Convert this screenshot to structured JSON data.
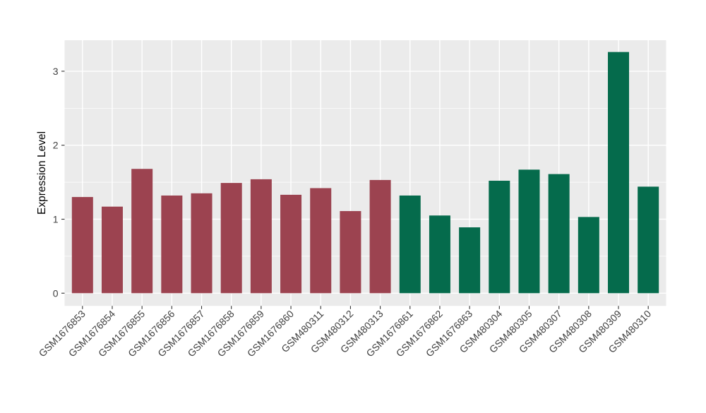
{
  "figure": {
    "background": "#FFFFFF"
  },
  "chart_data": {
    "type": "bar",
    "title": "",
    "xlabel": "",
    "ylabel": "Expression Level",
    "ylim": [
      -0.17,
      3.42
    ],
    "yticks": [
      0,
      1,
      2,
      3
    ],
    "minor_gridlines": [
      0.5,
      1.5,
      2.5
    ],
    "grid": "horizontal major+minor white, vertical major at category centers",
    "legend": "none",
    "panel_background": "#EBEBEB",
    "gridline_color": "#FFFFFF",
    "axis_text_color": "#404040",
    "axis_tick_color": "#333333",
    "categories": [
      "GSM1676853",
      "GSM1676854",
      "GSM1676855",
      "GSM1676856",
      "GSM1676857",
      "GSM1676858",
      "GSM1676859",
      "GSM1676860",
      "GSM480311",
      "GSM480312",
      "GSM480313",
      "GSM1676861",
      "GSM1676862",
      "GSM1676863",
      "GSM480304",
      "GSM480305",
      "GSM480307",
      "GSM480308",
      "GSM480309",
      "GSM480310"
    ],
    "values": [
      1.3,
      1.17,
      1.68,
      1.32,
      1.35,
      1.49,
      1.54,
      1.33,
      1.42,
      1.11,
      1.53,
      1.32,
      1.05,
      0.89,
      1.52,
      1.67,
      1.61,
      1.03,
      3.26,
      1.44
    ],
    "groups": [
      {
        "name": "maroon-group",
        "color": "#9C4350",
        "start_index": 0,
        "end_index": 10
      },
      {
        "name": "green-group",
        "color": "#056B4C",
        "start_index": 11,
        "end_index": 19
      }
    ]
  }
}
